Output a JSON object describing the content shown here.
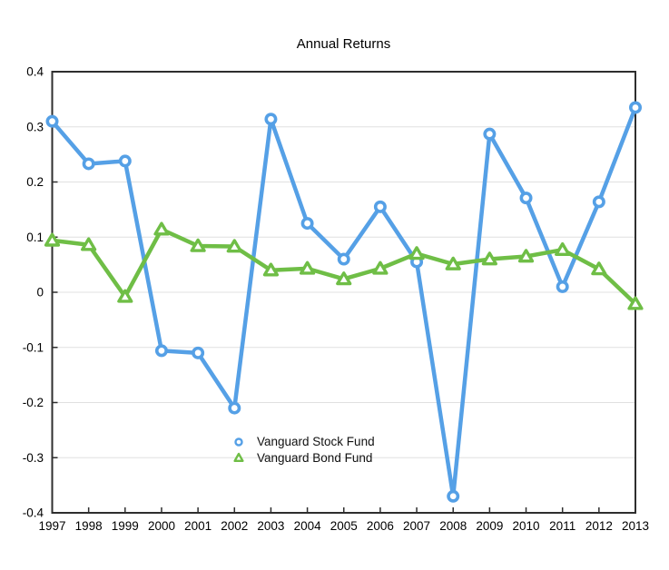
{
  "chart_data": {
    "type": "line",
    "title": "Annual Returns",
    "x": [
      "1997",
      "1998",
      "1999",
      "2000",
      "2001",
      "2002",
      "2003",
      "2004",
      "2005",
      "2006",
      "2007",
      "2008",
      "2009",
      "2010",
      "2011",
      "2012",
      "2013"
    ],
    "series": [
      {
        "name": "Vanguard Stock Fund",
        "marker": "circle",
        "color": "#55A0E6",
        "values": [
          0.31,
          0.233,
          0.238,
          -0.106,
          -0.11,
          -0.21,
          0.314,
          0.125,
          0.06,
          0.155,
          0.055,
          -0.37,
          0.287,
          0.171,
          0.01,
          0.164,
          0.335
        ]
      },
      {
        "name": "Vanguard Bond Fund",
        "marker": "triangle",
        "color": "#6FBE46",
        "values": [
          0.094,
          0.086,
          -0.008,
          0.114,
          0.084,
          0.083,
          0.04,
          0.043,
          0.024,
          0.043,
          0.07,
          0.051,
          0.06,
          0.065,
          0.077,
          0.042,
          -0.021
        ]
      }
    ],
    "ylim": [
      -0.4,
      0.4
    ],
    "yticks": [
      {
        "label": "0.4",
        "value": 0.4
      },
      {
        "label": "0.3",
        "value": 0.3
      },
      {
        "label": "0.2",
        "value": 0.2
      },
      {
        "label": "0.1",
        "value": 0.1
      },
      {
        "label": "0",
        "value": 0
      },
      {
        "label": "-0.1",
        "value": -0.1
      },
      {
        "label": "-0.2",
        "value": -0.2
      },
      {
        "label": "-0.3",
        "value": -0.3
      },
      {
        "label": "-0.4",
        "value": -0.4
      }
    ],
    "grid": "horizontal",
    "grid_color": "#e0e0e0",
    "axis_color": "#2e2e2e",
    "legend_position": "inside-lower-left"
  }
}
